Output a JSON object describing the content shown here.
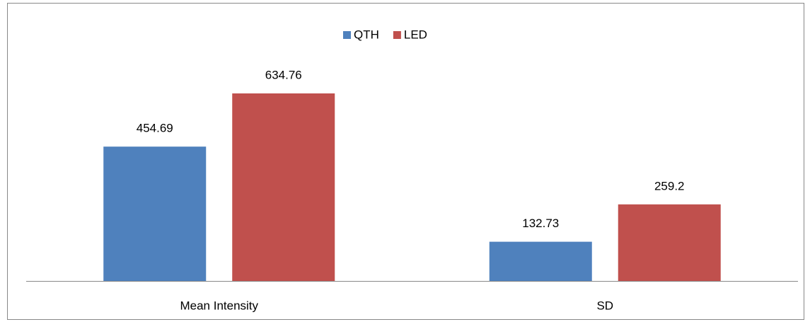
{
  "chart_data": {
    "type": "bar",
    "categories": [
      "Mean Intensity",
      "SD"
    ],
    "series": [
      {
        "name": "QTH",
        "color": "#4f81bd",
        "values": [
          454.69,
          132.73
        ]
      },
      {
        "name": "LED",
        "color": "#c0504d",
        "values": [
          634.76,
          259.2
        ]
      }
    ],
    "legend": "top"
  }
}
